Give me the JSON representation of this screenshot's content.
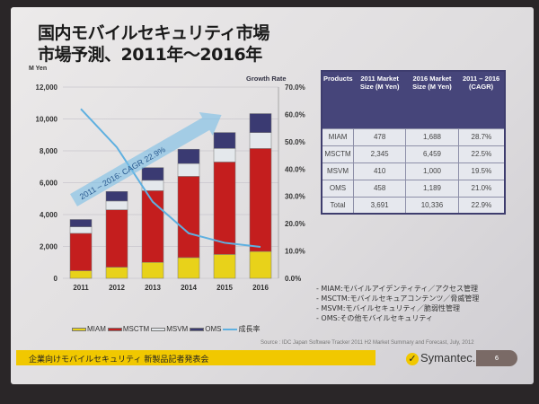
{
  "title": {
    "line1": "国内モバイルセキュリティ市場",
    "line2": "市場予測、2011年〜2016年"
  },
  "chart_data": {
    "type": "bar",
    "stacked": true,
    "left_axis_label": "M Yen",
    "right_axis_label": "Growth Rate",
    "categories": [
      "2011",
      "2012",
      "2013",
      "2014",
      "2015",
      "2016"
    ],
    "ylim": [
      0,
      12000
    ],
    "yticks": [
      "0",
      "2,000",
      "4,000",
      "6,000",
      "8,000",
      "10,000",
      "12,000"
    ],
    "y2lim": [
      0,
      70
    ],
    "y2ticks": [
      "0.0%",
      "10.0%",
      "20.0%",
      "30.0%",
      "40.0%",
      "50.0%",
      "60.0%",
      "70.0%"
    ],
    "series": [
      {
        "name": "MIAM",
        "color": "#e8d21a",
        "values": [
          478,
          700,
          1000,
          1300,
          1500,
          1688
        ]
      },
      {
        "name": "MSCTM",
        "color": "#c41e1e",
        "values": [
          2345,
          3600,
          4500,
          5100,
          5800,
          6459
        ]
      },
      {
        "name": "MSVM",
        "color": "#e4e8ec",
        "values": [
          410,
          550,
          650,
          800,
          850,
          1000
        ]
      },
      {
        "name": "OMS",
        "color": "#3a3a72",
        "values": [
          458,
          600,
          800,
          900,
          1000,
          1189
        ]
      }
    ],
    "line_series": {
      "name": "成長率",
      "color": "#5fb0e0",
      "values": [
        62,
        48,
        28,
        16.5,
        13,
        11.5
      ]
    },
    "annotation": "2011 – 2016: CAGR 22.9%"
  },
  "table": {
    "headers": [
      "Products",
      "2011 Market Size (M Yen)",
      "2016 Market Size (M Yen)",
      "2011 – 2016 (CAGR)"
    ],
    "rows": [
      [
        "MIAM",
        "478",
        "1,688",
        "28.7%"
      ],
      [
        "MSCTM",
        "2,345",
        "6,459",
        "22.5%"
      ],
      [
        "MSVM",
        "410",
        "1,000",
        "19.5%"
      ],
      [
        "OMS",
        "458",
        "1,189",
        "21.0%"
      ],
      [
        "Total",
        "3,691",
        "10,336",
        "22.9%"
      ]
    ]
  },
  "definitions": [
    "- MIAM:モバイルアイデンティティ／アクセス管理",
    "- MSCTM:モバイルセキュアコンテンツ／脅威管理",
    "- MSVM:モバイルセキュリティ／脆弱性管理",
    "- OMS:その他モバイルセキュリティ"
  ],
  "source": "Source : IDC Japan Software Tracker 2011 H2 Market Summary and Forecast, July, 2012",
  "footer": "企業向けモバイルセキュリティ 新製品記者発表会",
  "logo": "Symantec.",
  "page_number": "6"
}
